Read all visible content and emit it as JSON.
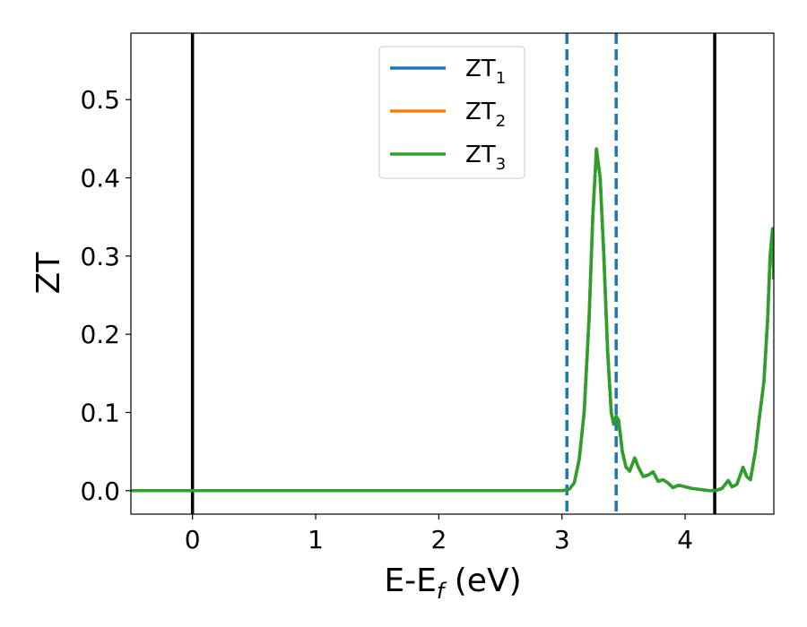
{
  "chart_data": {
    "type": "line",
    "xlabel": "E-E",
    "xlabel_sub": "f",
    "xlabel_unit": " (eV)",
    "ylabel": "ZT",
    "xlim": [
      -0.5,
      4.72
    ],
    "ylim": [
      -0.03,
      0.585
    ],
    "x_ticks": [
      0,
      1,
      2,
      3,
      4
    ],
    "x_tick_labels": [
      "0",
      "1",
      "2",
      "3",
      "4"
    ],
    "y_ticks": [
      0.0,
      0.1,
      0.2,
      0.3,
      0.4,
      0.5
    ],
    "y_tick_labels": [
      "0.0",
      "0.1",
      "0.2",
      "0.3",
      "0.4",
      "0.5"
    ],
    "grid": false,
    "legend_position": "top-center",
    "series": [
      {
        "name": "ZT",
        "sub": "1",
        "color": "#1f77b4",
        "points": [
          [
            -0.5,
            0
          ],
          [
            3.0,
            0
          ],
          [
            3.06,
            0.002
          ],
          [
            3.1,
            0.01
          ],
          [
            3.14,
            0.04
          ],
          [
            3.18,
            0.1
          ],
          [
            3.22,
            0.22
          ],
          [
            3.25,
            0.35
          ],
          [
            3.28,
            0.437
          ],
          [
            3.31,
            0.4
          ],
          [
            3.34,
            0.3
          ],
          [
            3.37,
            0.18
          ],
          [
            3.4,
            0.1
          ],
          [
            3.42,
            0.085
          ],
          [
            3.44,
            0.095
          ],
          [
            3.46,
            0.09
          ],
          [
            3.49,
            0.05
          ],
          [
            3.52,
            0.03
          ],
          [
            3.55,
            0.025
          ],
          [
            3.59,
            0.042
          ],
          [
            3.62,
            0.03
          ],
          [
            3.66,
            0.018
          ],
          [
            3.7,
            0.02
          ],
          [
            3.74,
            0.024
          ],
          [
            3.78,
            0.012
          ],
          [
            3.82,
            0.014
          ],
          [
            3.86,
            0.01
          ],
          [
            3.9,
            0.004
          ],
          [
            3.95,
            0.007
          ],
          [
            4.0,
            0.005
          ],
          [
            4.05,
            0.003
          ],
          [
            4.1,
            0.002
          ],
          [
            4.15,
            0.001
          ],
          [
            4.2,
            0.0
          ],
          [
            4.25,
            0.0
          ],
          [
            4.3,
            0.003
          ],
          [
            4.35,
            0.013
          ],
          [
            4.38,
            0.005
          ],
          [
            4.42,
            0.008
          ],
          [
            4.47,
            0.03
          ],
          [
            4.5,
            0.018
          ],
          [
            4.53,
            0.014
          ],
          [
            4.57,
            0.05
          ],
          [
            4.6,
            0.09
          ],
          [
            4.64,
            0.14
          ],
          [
            4.67,
            0.22
          ],
          [
            4.69,
            0.3
          ],
          [
            4.71,
            0.335
          ],
          [
            4.72,
            0.27
          ]
        ]
      },
      {
        "name": "ZT",
        "sub": "2",
        "color": "#ff7f0e",
        "points": [
          [
            -0.5,
            0
          ],
          [
            3.0,
            0
          ],
          [
            3.06,
            0.002
          ],
          [
            3.1,
            0.01
          ],
          [
            3.14,
            0.04
          ],
          [
            3.18,
            0.1
          ],
          [
            3.22,
            0.22
          ],
          [
            3.25,
            0.35
          ],
          [
            3.28,
            0.437
          ],
          [
            3.31,
            0.4
          ],
          [
            3.34,
            0.3
          ],
          [
            3.37,
            0.18
          ],
          [
            3.4,
            0.1
          ],
          [
            3.42,
            0.085
          ],
          [
            3.44,
            0.095
          ],
          [
            3.46,
            0.09
          ],
          [
            3.49,
            0.05
          ],
          [
            3.52,
            0.03
          ],
          [
            3.55,
            0.025
          ],
          [
            3.59,
            0.042
          ],
          [
            3.62,
            0.03
          ],
          [
            3.66,
            0.018
          ],
          [
            3.7,
            0.02
          ],
          [
            3.74,
            0.024
          ],
          [
            3.78,
            0.012
          ],
          [
            3.82,
            0.014
          ],
          [
            3.86,
            0.01
          ],
          [
            3.9,
            0.004
          ],
          [
            3.95,
            0.007
          ],
          [
            4.0,
            0.005
          ],
          [
            4.05,
            0.003
          ],
          [
            4.1,
            0.002
          ],
          [
            4.15,
            0.001
          ],
          [
            4.2,
            0.0
          ],
          [
            4.25,
            0.0
          ],
          [
            4.3,
            0.003
          ],
          [
            4.35,
            0.013
          ],
          [
            4.38,
            0.005
          ],
          [
            4.42,
            0.008
          ],
          [
            4.47,
            0.03
          ],
          [
            4.5,
            0.018
          ],
          [
            4.53,
            0.014
          ],
          [
            4.57,
            0.05
          ],
          [
            4.6,
            0.09
          ],
          [
            4.64,
            0.14
          ],
          [
            4.67,
            0.22
          ],
          [
            4.69,
            0.3
          ],
          [
            4.71,
            0.335
          ],
          [
            4.72,
            0.27
          ]
        ]
      },
      {
        "name": "ZT",
        "sub": "3",
        "color": "#2ca02c",
        "points": [
          [
            -0.5,
            0
          ],
          [
            3.0,
            0
          ],
          [
            3.06,
            0.002
          ],
          [
            3.1,
            0.01
          ],
          [
            3.14,
            0.04
          ],
          [
            3.18,
            0.1
          ],
          [
            3.22,
            0.22
          ],
          [
            3.25,
            0.35
          ],
          [
            3.28,
            0.437
          ],
          [
            3.31,
            0.4
          ],
          [
            3.34,
            0.3
          ],
          [
            3.37,
            0.18
          ],
          [
            3.4,
            0.1
          ],
          [
            3.42,
            0.085
          ],
          [
            3.44,
            0.095
          ],
          [
            3.46,
            0.09
          ],
          [
            3.49,
            0.05
          ],
          [
            3.52,
            0.03
          ],
          [
            3.55,
            0.025
          ],
          [
            3.59,
            0.042
          ],
          [
            3.62,
            0.03
          ],
          [
            3.66,
            0.018
          ],
          [
            3.7,
            0.02
          ],
          [
            3.74,
            0.024
          ],
          [
            3.78,
            0.012
          ],
          [
            3.82,
            0.014
          ],
          [
            3.86,
            0.01
          ],
          [
            3.9,
            0.004
          ],
          [
            3.95,
            0.007
          ],
          [
            4.0,
            0.005
          ],
          [
            4.05,
            0.003
          ],
          [
            4.1,
            0.002
          ],
          [
            4.15,
            0.001
          ],
          [
            4.2,
            0.0
          ],
          [
            4.25,
            0.0
          ],
          [
            4.3,
            0.003
          ],
          [
            4.35,
            0.013
          ],
          [
            4.38,
            0.005
          ],
          [
            4.42,
            0.008
          ],
          [
            4.47,
            0.03
          ],
          [
            4.5,
            0.018
          ],
          [
            4.53,
            0.014
          ],
          [
            4.57,
            0.05
          ],
          [
            4.6,
            0.09
          ],
          [
            4.64,
            0.14
          ],
          [
            4.67,
            0.22
          ],
          [
            4.69,
            0.3
          ],
          [
            4.71,
            0.335
          ],
          [
            4.72,
            0.27
          ]
        ]
      }
    ],
    "vertical_lines": [
      {
        "x": 0.0,
        "style": "solid",
        "color": "#000000"
      },
      {
        "x": 4.24,
        "style": "solid",
        "color": "#000000"
      },
      {
        "x": 3.04,
        "style": "dashed",
        "color": "#1f77b4"
      },
      {
        "x": 3.44,
        "style": "dashed",
        "color": "#1f77b4"
      }
    ]
  }
}
